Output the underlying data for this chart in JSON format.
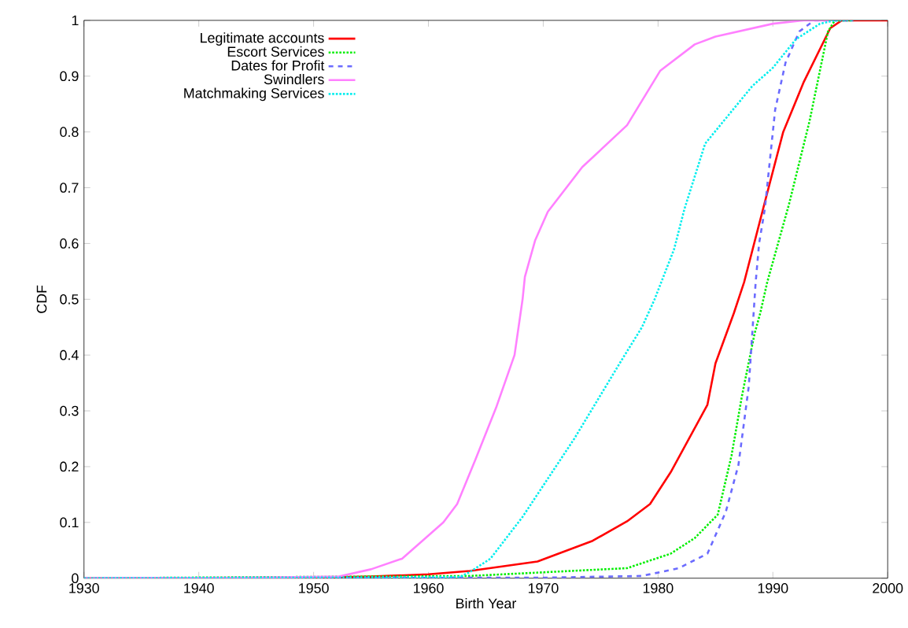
{
  "chart_data": {
    "type": "line",
    "xlabel": "Birth Year",
    "ylabel": "CDF",
    "xlim": [
      1930,
      2000
    ],
    "ylim": [
      0,
      1
    ],
    "xticks": [
      1930,
      1940,
      1950,
      1960,
      1970,
      1980,
      1990,
      2000
    ],
    "yticks": [
      0,
      0.1,
      0.2,
      0.3,
      0.4,
      0.5,
      0.6,
      0.7,
      0.8,
      0.9,
      1
    ],
    "grid": false,
    "legend": "top left",
    "marker": "none",
    "series": [
      {
        "name": "Legitimate accounts",
        "color": "#ff0000",
        "line_style": "solid",
        "x": [
          1930,
          1950,
          1955,
          1960,
          1963.6,
          1969.5,
          1974.3,
          1977.3,
          1979.3,
          1981.1,
          1984.3,
          1985.0,
          1986.6,
          1987.5,
          1989.5,
          1990.9,
          1992.7,
          1995.0,
          1996,
          2000
        ],
        "values": [
          0,
          0.001,
          0.003,
          0.007,
          0.013,
          0.03,
          0.067,
          0.102,
          0.133,
          0.19,
          0.311,
          0.385,
          0.475,
          0.531,
          0.69,
          0.8,
          0.89,
          0.986,
          1.0,
          1.0
        ]
      },
      {
        "name": "Escort Services",
        "color": "#00ee00",
        "line_style": "dotted",
        "x": [
          1930,
          1963.6,
          1977.3,
          1981.1,
          1983.2,
          1985.2,
          1986.4,
          1987.3,
          1988.4,
          1988.9,
          1989.5,
          1991.4,
          1993.2,
          1994.8,
          1995.4,
          1997
        ],
        "values": [
          0,
          0.004,
          0.018,
          0.044,
          0.072,
          0.114,
          0.22,
          0.326,
          0.438,
          0.475,
          0.53,
          0.67,
          0.82,
          0.98,
          1.0,
          1.0
        ]
      },
      {
        "name": "Dates for Profit",
        "color": "#6b6bff",
        "line_style": "dashed",
        "x": [
          1930,
          1970,
          1978.6,
          1981.8,
          1984.3,
          1985.9,
          1987.0,
          1987.9,
          1988.5,
          1988.8,
          1989.3,
          1990.2,
          1991.1,
          1992.3,
          1993.6,
          1997
        ],
        "values": [
          0,
          0.001,
          0.004,
          0.018,
          0.044,
          0.119,
          0.203,
          0.344,
          0.53,
          0.6,
          0.662,
          0.84,
          0.924,
          0.98,
          1.0,
          1.0
        ]
      },
      {
        "name": "Swindlers",
        "color": "#ff80ff",
        "line_style": "solid",
        "x": [
          1930,
          1945,
          1952.2,
          1955.0,
          1957.7,
          1961.3,
          1962.5,
          1964.1,
          1965.9,
          1967.5,
          1968.2,
          1968.4,
          1969.3,
          1970.4,
          1973.4,
          1977.3,
          1980.2,
          1983.2,
          1985.0,
          1990.0,
          1992.7,
          1995
        ],
        "values": [
          0,
          0.001,
          0.003,
          0.016,
          0.035,
          0.1,
          0.133,
          0.213,
          0.306,
          0.4,
          0.5,
          0.54,
          0.606,
          0.657,
          0.737,
          0.812,
          0.91,
          0.957,
          0.971,
          0.994,
          1.0,
          1.0
        ]
      },
      {
        "name": "Matchmaking Services",
        "color": "#00eeee",
        "line_style": "dotted",
        "x": [
          1930,
          1962.7,
          1963.6,
          1965.4,
          1968.2,
          1972.7,
          1976.8,
          1978.6,
          1979.7,
          1981.4,
          1982.3,
          1984.1,
          1988.2,
          1990.0,
          1992.0,
          1994.1,
          1995.4,
          1997
        ],
        "values": [
          0,
          0.002,
          0.011,
          0.035,
          0.11,
          0.25,
          0.39,
          0.45,
          0.5,
          0.59,
          0.662,
          0.779,
          0.882,
          0.915,
          0.966,
          0.994,
          1.0,
          1.0
        ]
      }
    ]
  }
}
